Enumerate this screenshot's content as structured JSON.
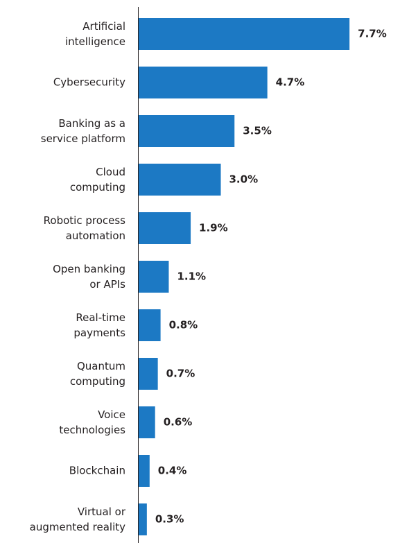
{
  "chart_data": {
    "type": "bar",
    "orientation": "horizontal",
    "categories": [
      "Artificial intelligence",
      "Cybersecurity",
      "Banking as a service platform",
      "Cloud computing",
      "Robotic process automation",
      "Open banking or APIs",
      "Real-time payments",
      "Quantum computing",
      "Voice technologies",
      "Blockchain",
      "Virtual or augmented reality"
    ],
    "values": [
      7.7,
      4.7,
      3.5,
      3.0,
      1.9,
      1.1,
      0.8,
      0.7,
      0.6,
      0.4,
      0.3
    ],
    "value_labels": [
      "7.7%",
      "4.7%",
      "3.5%",
      "3.0%",
      "1.9%",
      "1.1%",
      "0.8%",
      "0.7%",
      "0.6%",
      "0.4%",
      "0.3%"
    ],
    "color": "#1c79c4"
  }
}
